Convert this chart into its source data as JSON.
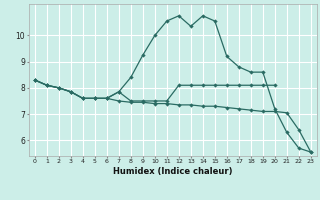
{
  "xlabel": "Humidex (Indice chaleur)",
  "background_color": "#cceee8",
  "grid_color": "#ffffff",
  "line_color": "#2a6b63",
  "xlim": [
    -0.5,
    23.5
  ],
  "ylim": [
    5.4,
    11.2
  ],
  "yticks": [
    6,
    7,
    8,
    9,
    10
  ],
  "xticks": [
    0,
    1,
    2,
    3,
    4,
    5,
    6,
    7,
    8,
    9,
    10,
    11,
    12,
    13,
    14,
    15,
    16,
    17,
    18,
    19,
    20,
    21,
    22,
    23
  ],
  "series1_x": [
    0,
    1,
    2,
    3,
    4,
    5,
    6,
    7,
    8,
    9,
    10,
    11,
    12,
    13,
    14,
    15,
    16,
    17,
    18,
    19,
    20
  ],
  "series1_y": [
    8.3,
    8.1,
    8.0,
    7.85,
    7.6,
    7.6,
    7.6,
    7.85,
    7.5,
    7.5,
    7.5,
    7.5,
    8.1,
    8.1,
    8.1,
    8.1,
    8.1,
    8.1,
    8.1,
    8.1,
    8.1
  ],
  "series2_x": [
    0,
    1,
    2,
    3,
    4,
    5,
    6,
    7,
    8,
    9,
    10,
    11,
    12,
    13,
    14,
    15,
    16,
    17,
    18,
    19,
    20,
    21,
    22,
    23
  ],
  "series2_y": [
    8.3,
    8.1,
    8.0,
    7.85,
    7.6,
    7.6,
    7.6,
    7.85,
    8.4,
    9.25,
    10.0,
    10.55,
    10.75,
    10.35,
    10.75,
    10.55,
    9.2,
    8.8,
    8.6,
    8.6,
    7.2,
    6.3,
    5.7,
    5.55
  ],
  "series3_x": [
    0,
    1,
    2,
    3,
    4,
    5,
    6,
    7,
    8,
    9,
    10,
    11,
    12,
    13,
    14,
    15,
    16,
    17,
    18,
    19,
    20,
    21,
    22,
    23
  ],
  "series3_y": [
    8.3,
    8.1,
    8.0,
    7.85,
    7.6,
    7.6,
    7.6,
    7.5,
    7.45,
    7.45,
    7.4,
    7.4,
    7.35,
    7.35,
    7.3,
    7.3,
    7.25,
    7.2,
    7.15,
    7.1,
    7.1,
    7.05,
    6.4,
    5.55
  ]
}
